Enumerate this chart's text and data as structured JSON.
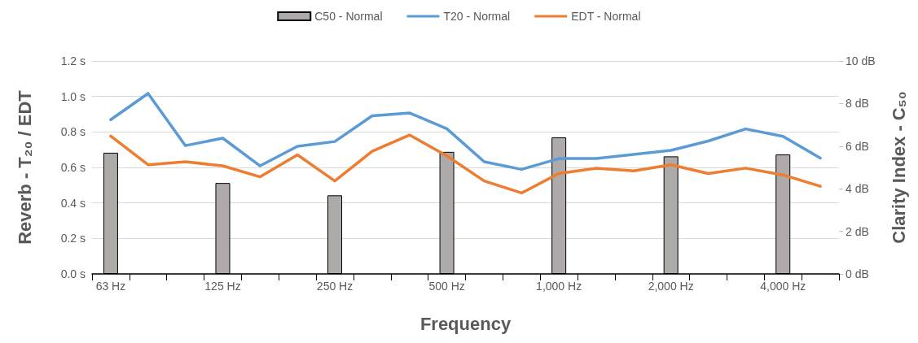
{
  "chart_data": {
    "type": "line",
    "categories": [
      "63 Hz",
      null,
      null,
      "125 Hz",
      null,
      null,
      "250 Hz",
      null,
      null,
      "500 Hz",
      null,
      null,
      "1,000 Hz",
      null,
      null,
      "2,000 Hz",
      null,
      null,
      "4,000 Hz",
      null
    ],
    "series": [
      {
        "name": "C50 - Normal",
        "type": "bar",
        "axis": "y2",
        "color": "#aeaaaa",
        "values": [
          5.69,
          null,
          null,
          4.27,
          null,
          null,
          3.69,
          null,
          null,
          5.73,
          null,
          null,
          6.41,
          null,
          null,
          5.52,
          null,
          null,
          5.61,
          null
        ]
      },
      {
        "name": "T20 - Normal",
        "color": "#5b9bd5",
        "values": [
          0.869,
          1.017,
          0.723,
          0.765,
          0.609,
          0.719,
          0.746,
          0.891,
          0.907,
          0.818,
          0.632,
          0.589,
          0.65,
          0.65,
          0.673,
          0.696,
          0.749,
          0.817,
          0.775,
          0.653
        ]
      },
      {
        "name": "EDT - Normal",
        "color": "#ed7d31",
        "values": [
          0.777,
          0.615,
          0.632,
          0.609,
          0.547,
          0.671,
          0.524,
          0.691,
          0.783,
          0.665,
          0.524,
          0.456,
          0.566,
          0.595,
          0.581,
          0.615,
          0.566,
          0.596,
          0.558,
          0.494
        ]
      }
    ],
    "xlabel": "Frequency",
    "ylabel": "Reverb - T₂₀ / EDT",
    "y2label": "Clarity Index - C₅₀",
    "ylim": [
      0,
      1.2
    ],
    "yticks": [
      {
        "value": 0,
        "label": "0.0 s"
      },
      {
        "value": 0.2,
        "label": "0.2 s"
      },
      {
        "value": 0.4,
        "label": "0.4 s"
      },
      {
        "value": 0.6,
        "label": "0.6 s"
      },
      {
        "value": 0.8,
        "label": "0.8 s"
      },
      {
        "value": 1.0,
        "label": "1.0 s"
      },
      {
        "value": 1.2,
        "label": "1.2 s"
      }
    ],
    "y2lim": [
      0,
      10
    ],
    "y2ticks": [
      {
        "value": 0,
        "label": "0 dB"
      },
      {
        "value": 2,
        "label": "2 dB"
      },
      {
        "value": 4,
        "label": "4 dB"
      },
      {
        "value": 6,
        "label": "6 dB"
      },
      {
        "value": 8,
        "label": "8 dB"
      },
      {
        "value": 10,
        "label": "10 dB"
      }
    ],
    "grid": "y",
    "legend": "top",
    "marker": "none",
    "line_style": "solid"
  }
}
